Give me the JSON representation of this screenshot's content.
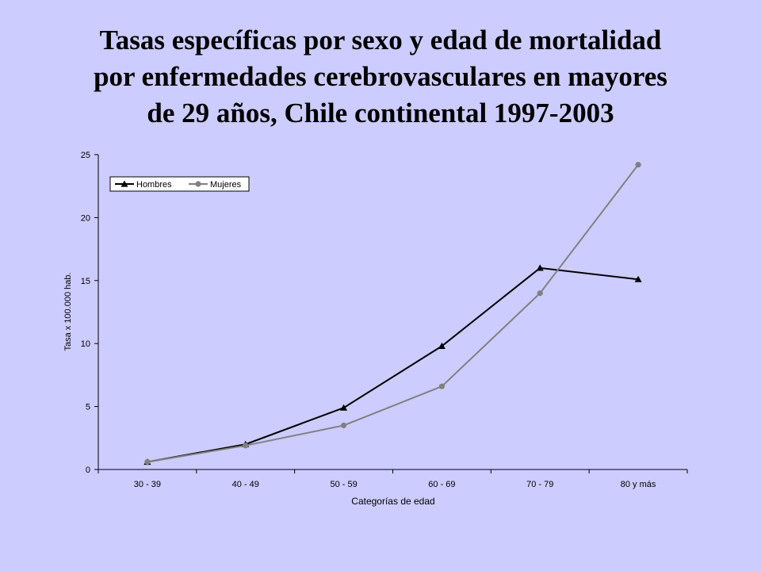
{
  "slide": {
    "title_lines": [
      "Tasas específicas por sexo y edad de mortalidad",
      "por enfermedades cerebrovasculares en mayores",
      "de 29 años, Chile continental 1997-2003"
    ],
    "background": "#ccccff"
  },
  "chart_data": {
    "type": "line",
    "categories": [
      "30 - 39",
      "40 - 49",
      "50 - 59",
      "60 - 69",
      "70 - 79",
      "80 y más"
    ],
    "series": [
      {
        "name": "Hombres",
        "values": [
          0.6,
          2.0,
          4.9,
          9.8,
          16.0,
          15.1
        ],
        "color": "#000000",
        "marker": "triangle"
      },
      {
        "name": "Mujeres",
        "values": [
          0.6,
          1.9,
          3.5,
          6.6,
          14.0,
          24.2
        ],
        "color": "#808080",
        "marker": "circle"
      }
    ],
    "xlabel": "Categorías de edad",
    "ylabel": "Tasa x 100.000 hab.",
    "ylim": [
      0,
      25
    ],
    "yticks": [
      0,
      5,
      10,
      15,
      20,
      25
    ],
    "grid": false,
    "legend_position": "top-left"
  }
}
